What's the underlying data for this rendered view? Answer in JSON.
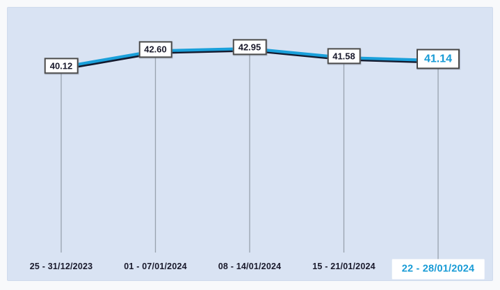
{
  "page": {
    "background_color": "#f8f9fb",
    "panel_background_color": "#d9e3f3"
  },
  "chart_data": {
    "type": "line",
    "title": "",
    "xlabel": "",
    "ylabel": "",
    "categories": [
      "25 - 31/12/2023",
      "01 - 07/01/2024",
      "08 - 14/01/2024",
      "15 - 21/01/2024",
      "22 - 28/01/2024"
    ],
    "values": [
      40.12,
      42.6,
      42.95,
      41.58,
      41.14
    ],
    "value_labels": [
      "40.12",
      "42.60",
      "42.95",
      "41.58",
      "41.14"
    ],
    "highlighted_index": 4,
    "legend_position": "none",
    "grid": "vertical-droplines-only",
    "line_color": "#1aa0da",
    "line_shadow_color": "#141a2e",
    "dropline_color": "#98a1ad",
    "value_box_border_color": "#4a4a4a",
    "value_text_color": "#19192b",
    "date_text_color": "#19192b",
    "highlight_text_color": "#189bd6",
    "highlight_box_color": "#ffffff"
  }
}
